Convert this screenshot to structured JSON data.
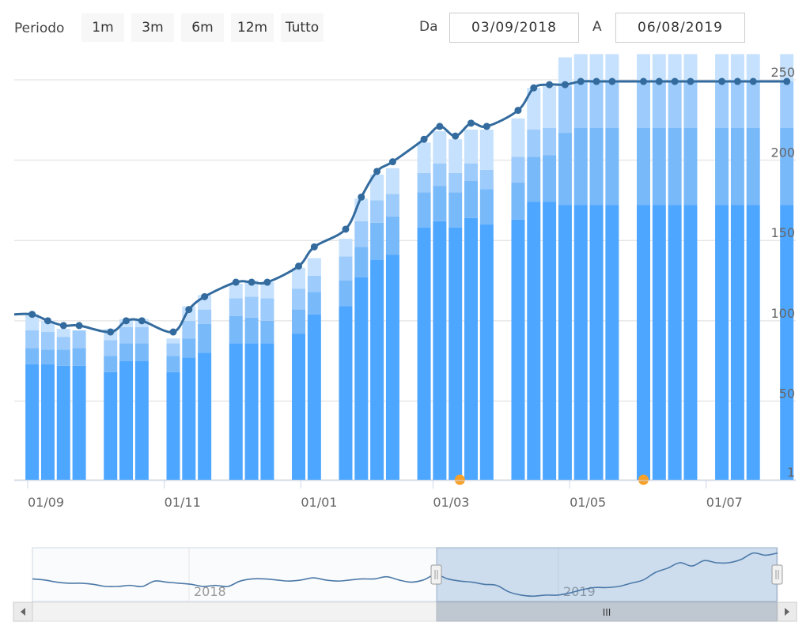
{
  "range_selector": {
    "label": "Periodo",
    "buttons": [
      "1m",
      "3m",
      "6m",
      "12m",
      "Tutto"
    ],
    "from_label": "Da",
    "from_value": "03/09/2018",
    "to_label": "A",
    "to_value": "06/08/2019"
  },
  "navigator": {
    "labels": [
      "2018",
      "2019"
    ],
    "scroll_handle": "III"
  },
  "colors": {
    "line": "#336b9e",
    "bar_1": "#4da6ff",
    "bar_2": "#78b9fa",
    "bar_3": "#9dcbfb",
    "bar_4": "#c5e1fd",
    "flag": "#f7a128",
    "grid": "#dddddd"
  },
  "chart_data": {
    "type": "bar",
    "title": "",
    "x_tick_labels": [
      "01/09",
      "01/11",
      "01/01",
      "01/03",
      "01/05",
      "01/07"
    ],
    "y_ticks": [
      1,
      50,
      100,
      150,
      200,
      250
    ],
    "ylim": [
      1,
      250
    ],
    "grid": true,
    "categories": [
      "2018-09-03",
      "2018-09-10",
      "2018-09-17",
      "2018-09-24",
      "2018-10-08",
      "2018-10-15",
      "2018-10-22",
      "2018-11-05",
      "2018-11-12",
      "2018-11-19",
      "2018-12-03",
      "2018-12-10",
      "2018-12-17",
      "2018-12-31",
      "2019-01-07",
      "2019-01-21",
      "2019-01-28",
      "2019-02-04",
      "2019-02-11",
      "2019-02-25",
      "2019-03-04",
      "2019-03-11",
      "2019-03-18",
      "2019-03-25",
      "2019-04-08",
      "2019-04-15",
      "2019-04-22",
      "2019-04-29",
      "2019-05-06",
      "2019-05-13",
      "2019-05-20",
      "2019-06-03",
      "2019-06-10",
      "2019-06-17",
      "2019-06-24",
      "2019-07-08",
      "2019-07-15",
      "2019-07-22",
      "2019-08-06"
    ],
    "series": [
      {
        "values": [
          73,
          73,
          72,
          72,
          68,
          75,
          75,
          68,
          77,
          80,
          86,
          86,
          86,
          92,
          104,
          109,
          127,
          138,
          141,
          158,
          162,
          158,
          164,
          160,
          163,
          174,
          174,
          172,
          172,
          172,
          172,
          172,
          172,
          172,
          172,
          172,
          172,
          172,
          172
        ]
      },
      {
        "values": [
          10,
          9,
          10,
          11,
          10,
          11,
          11,
          10,
          12,
          18,
          17,
          16,
          14,
          15,
          14,
          16,
          19,
          23,
          24,
          22,
          22,
          22,
          23,
          22,
          23,
          28,
          29,
          45,
          48,
          48,
          48,
          48,
          48,
          48,
          48,
          48,
          48,
          48,
          48
        ]
      },
      {
        "values": [
          11,
          11,
          8,
          11,
          10,
          10,
          10,
          8,
          11,
          9,
          11,
          13,
          14,
          13,
          10,
          15,
          16,
          14,
          14,
          12,
          14,
          12,
          11,
          12,
          16,
          17,
          17,
          29,
          29,
          29,
          29,
          29,
          29,
          29,
          29,
          29,
          29,
          29,
          29
        ]
      },
      {
        "values": [
          10,
          7,
          5,
          0,
          7,
          5,
          5,
          3,
          9,
          9,
          9,
          10,
          10,
          13,
          11,
          11,
          14,
          16,
          16,
          19,
          20,
          21,
          21,
          25,
          24,
          26,
          26,
          18,
          17,
          17,
          17,
          17,
          17,
          17,
          17,
          17,
          17,
          17,
          17
        ]
      }
    ],
    "line": {
      "values": [
        104,
        100,
        97,
        97,
        93,
        100,
        100,
        93,
        107,
        115,
        124,
        124,
        124,
        134,
        146,
        157,
        177,
        193,
        199,
        213,
        221,
        215,
        223,
        221,
        231,
        245,
        247,
        247,
        249,
        249,
        249,
        249,
        249,
        249,
        249,
        249,
        249,
        249,
        249
      ]
    },
    "flags": [
      "2019-03-13",
      "2019-06-03"
    ]
  }
}
